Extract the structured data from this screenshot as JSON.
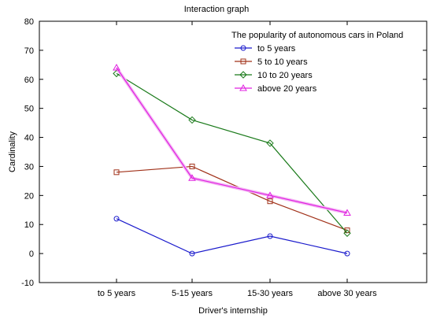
{
  "chart_data": {
    "type": "line",
    "title": "Interaction graph",
    "xlabel": "Driver's internship",
    "ylabel": "Cardinality",
    "categories": [
      "to 5 years",
      "5-15 years",
      "15-30 years",
      "above 30 years"
    ],
    "ylim": [
      -10,
      80
    ],
    "yticks": [
      -10,
      0,
      10,
      20,
      30,
      40,
      50,
      60,
      70,
      80
    ],
    "grid": false,
    "legend": {
      "title": "The popularity of autonomous cars in Poland",
      "placement": "top-right"
    },
    "series": [
      {
        "name": "to 5 years",
        "values": [
          12,
          0,
          6,
          0
        ],
        "color": "#1a1acc",
        "marker": "circle"
      },
      {
        "name": "5 to 10 years",
        "values": [
          28,
          30,
          18,
          8
        ],
        "color": "#a03018",
        "marker": "square"
      },
      {
        "name": "10 to 20 years",
        "values": [
          62,
          46,
          38,
          7
        ],
        "color": "#1a7a1a",
        "marker": "diamond"
      },
      {
        "name": "above 20 years",
        "values": [
          64,
          26,
          20,
          14
        ],
        "color": "#e020e0",
        "marker": "triangle"
      }
    ]
  }
}
